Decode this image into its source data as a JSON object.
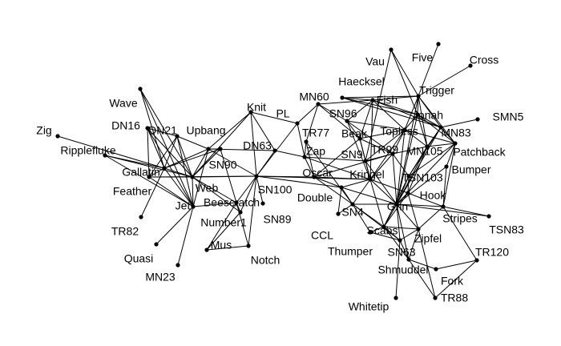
{
  "graph": {
    "nodes": [
      {
        "id": "Zig",
        "label": "Zig"
      },
      {
        "id": "Ripplefluke",
        "label": "Ripplefluke"
      },
      {
        "id": "Wave",
        "label": "Wave"
      },
      {
        "id": "DN16",
        "label": "DN16"
      },
      {
        "id": "DN21",
        "label": "DN21"
      },
      {
        "id": "Gallatin",
        "label": "Gallatin"
      },
      {
        "id": "Feather",
        "label": "Feather"
      },
      {
        "id": "TR82",
        "label": "TR82"
      },
      {
        "id": "Quasi",
        "label": "Quasi"
      },
      {
        "id": "MN23",
        "label": "MN23"
      },
      {
        "id": "Jet",
        "label": "Jet"
      },
      {
        "id": "Web",
        "label": "Web"
      },
      {
        "id": "Upbang",
        "label": "Upbang"
      },
      {
        "id": "SN90",
        "label": "SN90"
      },
      {
        "id": "Beescratch",
        "label": "Beescratch"
      },
      {
        "id": "Number1",
        "label": "Number1"
      },
      {
        "id": "Mus",
        "label": "Mus"
      },
      {
        "id": "Notch",
        "label": "Notch"
      },
      {
        "id": "Knit",
        "label": "Knit"
      },
      {
        "id": "DN63",
        "label": "DN63"
      },
      {
        "id": "SN100",
        "label": "SN100"
      },
      {
        "id": "SN89",
        "label": "SN89"
      },
      {
        "id": "PL",
        "label": "PL"
      },
      {
        "id": "MN60",
        "label": "MN60"
      },
      {
        "id": "TR77",
        "label": "TR77"
      },
      {
        "id": "Zap",
        "label": "Zap"
      },
      {
        "id": "Oscar",
        "label": "Oscar"
      },
      {
        "id": "Double",
        "label": "Double"
      },
      {
        "id": "CCL",
        "label": "CCL"
      },
      {
        "id": "SN4",
        "label": "SN4"
      },
      {
        "id": "Thumper",
        "label": "Thumper"
      },
      {
        "id": "SN96",
        "label": "SN96"
      },
      {
        "id": "Beak",
        "label": "Beak"
      },
      {
        "id": "SN9",
        "label": "SN9"
      },
      {
        "id": "Kringel",
        "label": "Kringel"
      },
      {
        "id": "TR99",
        "label": "TR99"
      },
      {
        "id": "Topless",
        "label": "Topless"
      },
      {
        "id": "Haecksel",
        "label": "Haecksel"
      },
      {
        "id": "Fish",
        "label": "Fish"
      },
      {
        "id": "Vau",
        "label": "Vau"
      },
      {
        "id": "Five",
        "label": "Five"
      },
      {
        "id": "Cross",
        "label": "Cross"
      },
      {
        "id": "Trigger",
        "label": "Trigger"
      },
      {
        "id": "Jonah",
        "label": "Jonah"
      },
      {
        "id": "MN83",
        "label": "MN83"
      },
      {
        "id": "SMN5",
        "label": "SMN5"
      },
      {
        "id": "MN105",
        "label": "MN105"
      },
      {
        "id": "Patchback",
        "label": "Patchback"
      },
      {
        "id": "Bumper",
        "label": "Bumper"
      },
      {
        "id": "TSN103",
        "label": "TSN103"
      },
      {
        "id": "Hook",
        "label": "Hook"
      },
      {
        "id": "Grin",
        "label": "Grin"
      },
      {
        "id": "Stripes",
        "label": "Stripes"
      },
      {
        "id": "TSN83",
        "label": "TSN83"
      },
      {
        "id": "Scabs",
        "label": "Scabs"
      },
      {
        "id": "Zipfel",
        "label": "Zipfel"
      },
      {
        "id": "SN63",
        "label": "SN63"
      },
      {
        "id": "TR120",
        "label": "TR120"
      },
      {
        "id": "Shmuddel",
        "label": "Shmuddel"
      },
      {
        "id": "Fork",
        "label": "Fork"
      },
      {
        "id": "TR88",
        "label": "TR88"
      },
      {
        "id": "Whitetip",
        "label": "Whitetip"
      }
    ],
    "edges": [
      [
        "Zig",
        "Gallatin"
      ],
      [
        "Ripplefluke",
        "Gallatin"
      ],
      [
        "Ripplefluke",
        "Web"
      ],
      [
        "Ripplefluke",
        "Jet"
      ],
      [
        "Wave",
        "Gallatin"
      ],
      [
        "Wave",
        "Web"
      ],
      [
        "Wave",
        "Jet"
      ],
      [
        "DN16",
        "Gallatin"
      ],
      [
        "DN16",
        "Web"
      ],
      [
        "DN16",
        "Feather"
      ],
      [
        "DN16",
        "Jet"
      ],
      [
        "DN16",
        "DN21"
      ],
      [
        "DN21",
        "Gallatin"
      ],
      [
        "DN21",
        "Web"
      ],
      [
        "DN21",
        "Feather"
      ],
      [
        "DN21",
        "Upbang"
      ],
      [
        "DN21",
        "Jet"
      ],
      [
        "Gallatin",
        "Web"
      ],
      [
        "Gallatin",
        "Jet"
      ],
      [
        "Gallatin",
        "Feather"
      ],
      [
        "Gallatin",
        "Upbang"
      ],
      [
        "Gallatin",
        "SN90"
      ],
      [
        "Gallatin",
        "TR82"
      ],
      [
        "Feather",
        "Web"
      ],
      [
        "Feather",
        "Jet"
      ],
      [
        "Feather",
        "SN100"
      ],
      [
        "Jet",
        "Web"
      ],
      [
        "Jet",
        "Quasi"
      ],
      [
        "Jet",
        "MN23"
      ],
      [
        "Jet",
        "Upbang"
      ],
      [
        "Jet",
        "Beescratch"
      ],
      [
        "Web",
        "SN90"
      ],
      [
        "Web",
        "Upbang"
      ],
      [
        "Web",
        "Beescratch"
      ],
      [
        "Web",
        "Number1"
      ],
      [
        "Web",
        "SN100"
      ],
      [
        "Web",
        "Knit"
      ],
      [
        "Upbang",
        "SN90"
      ],
      [
        "Upbang",
        "SN100"
      ],
      [
        "Upbang",
        "Knit"
      ],
      [
        "Upbang",
        "DN63"
      ],
      [
        "SN90",
        "Web"
      ],
      [
        "SN90",
        "Beescratch"
      ],
      [
        "Beescratch",
        "Number1"
      ],
      [
        "Beescratch",
        "SN100"
      ],
      [
        "Beescratch",
        "Notch"
      ],
      [
        "Beescratch",
        "Mus"
      ],
      [
        "Number1",
        "SN100"
      ],
      [
        "Number1",
        "Mus"
      ],
      [
        "Mus",
        "Notch"
      ],
      [
        "Notch",
        "SN100"
      ],
      [
        "Knit",
        "DN63"
      ],
      [
        "Knit",
        "SN100"
      ],
      [
        "Knit",
        "PL"
      ],
      [
        "DN63",
        "SN100"
      ],
      [
        "DN63",
        "Zap"
      ],
      [
        "SN100",
        "SN89"
      ],
      [
        "SN100",
        "Oscar"
      ],
      [
        "SN100",
        "Double"
      ],
      [
        "SN100",
        "PL"
      ],
      [
        "SN100",
        "Kringel"
      ],
      [
        "PL",
        "MN60"
      ],
      [
        "PL",
        "Zap"
      ],
      [
        "MN60",
        "SN96"
      ],
      [
        "MN60",
        "TR77"
      ],
      [
        "MN60",
        "Fish"
      ],
      [
        "MN60",
        "Beak"
      ],
      [
        "TR77",
        "Zap"
      ],
      [
        "TR77",
        "SN4"
      ],
      [
        "TR77",
        "Oscar"
      ],
      [
        "Zap",
        "Oscar"
      ],
      [
        "Zap",
        "SN9"
      ],
      [
        "Zap",
        "Kringel"
      ],
      [
        "Oscar",
        "Double"
      ],
      [
        "Oscar",
        "SN4"
      ],
      [
        "Oscar",
        "Kringel"
      ],
      [
        "Oscar",
        "Beak"
      ],
      [
        "Oscar",
        "TR99"
      ],
      [
        "Double",
        "SN4"
      ],
      [
        "Double",
        "Kringel"
      ],
      [
        "Double",
        "Grin"
      ],
      [
        "Double",
        "CCL"
      ],
      [
        "CCL",
        "SN4"
      ],
      [
        "SN4",
        "Thumper"
      ],
      [
        "SN4",
        "Kringel"
      ],
      [
        "SN4",
        "Grin"
      ],
      [
        "SN4",
        "Scabs"
      ],
      [
        "SN4",
        "SN63"
      ],
      [
        "SN96",
        "Fish"
      ],
      [
        "SN96",
        "Beak"
      ],
      [
        "SN96",
        "Kringel"
      ],
      [
        "SN96",
        "TR99"
      ],
      [
        "SN96",
        "Topless"
      ],
      [
        "Beak",
        "SN9"
      ],
      [
        "Beak",
        "Kringel"
      ],
      [
        "Beak",
        "TR99"
      ],
      [
        "Beak",
        "Topless"
      ],
      [
        "Beak",
        "Fish"
      ],
      [
        "SN9",
        "Kringel"
      ],
      [
        "SN9",
        "TR99"
      ],
      [
        "SN9",
        "Grin"
      ],
      [
        "SN9",
        "Topless"
      ],
      [
        "Kringel",
        "TR99"
      ],
      [
        "Kringel",
        "Grin"
      ],
      [
        "Kringel",
        "Hook"
      ],
      [
        "Kringel",
        "Scabs"
      ],
      [
        "Kringel",
        "Topless"
      ],
      [
        "TR99",
        "Topless"
      ],
      [
        "TR99",
        "Grin"
      ],
      [
        "TR99",
        "MN105"
      ],
      [
        "TR99",
        "TSN103"
      ],
      [
        "Topless",
        "Jonah"
      ],
      [
        "Topless",
        "Trigger"
      ],
      [
        "Topless",
        "MN105"
      ],
      [
        "Topless",
        "Grin"
      ],
      [
        "Topless",
        "Fish"
      ],
      [
        "Topless",
        "Patchback"
      ],
      [
        "Haecksel",
        "Fish"
      ],
      [
        "Haecksel",
        "Jonah"
      ],
      [
        "Haecksel",
        "Trigger"
      ],
      [
        "Haecksel",
        "MN83"
      ],
      [
        "Fish",
        "Trigger"
      ],
      [
        "Fish",
        "Jonah"
      ],
      [
        "Fish",
        "MN83"
      ],
      [
        "Fish",
        "Kringel"
      ],
      [
        "Vau",
        "Jonah"
      ],
      [
        "Vau",
        "SN9"
      ],
      [
        "Vau",
        "Trigger"
      ],
      [
        "Five",
        "Trigger"
      ],
      [
        "Cross",
        "Trigger"
      ],
      [
        "Trigger",
        "Jonah"
      ],
      [
        "Trigger",
        "MN83"
      ],
      [
        "Trigger",
        "MN105"
      ],
      [
        "Trigger",
        "Patchback"
      ],
      [
        "Trigger",
        "Grin"
      ],
      [
        "Jonah",
        "MN83"
      ],
      [
        "Jonah",
        "MN105"
      ],
      [
        "Jonah",
        "Patchback"
      ],
      [
        "Jonah",
        "Grin"
      ],
      [
        "MN83",
        "SMN5"
      ],
      [
        "MN83",
        "MN105"
      ],
      [
        "MN83",
        "Patchback"
      ],
      [
        "MN83",
        "Grin"
      ],
      [
        "MN83",
        "TSN103"
      ],
      [
        "MN105",
        "Patchback"
      ],
      [
        "MN105",
        "Grin"
      ],
      [
        "MN105",
        "TSN103"
      ],
      [
        "MN105",
        "Hook"
      ],
      [
        "Patchback",
        "Bumper"
      ],
      [
        "Patchback",
        "Grin"
      ],
      [
        "Patchback",
        "TSN103"
      ],
      [
        "Patchback",
        "Stripes"
      ],
      [
        "Bumper",
        "Stripes"
      ],
      [
        "Bumper",
        "Grin"
      ],
      [
        "TSN103",
        "Grin"
      ],
      [
        "TSN103",
        "Hook"
      ],
      [
        "TSN103",
        "Scabs"
      ],
      [
        "Hook",
        "Grin"
      ],
      [
        "Hook",
        "Stripes"
      ],
      [
        "Hook",
        "Zipfel"
      ],
      [
        "Hook",
        "Scabs"
      ],
      [
        "Grin",
        "Stripes"
      ],
      [
        "Grin",
        "Scabs"
      ],
      [
        "Grin",
        "SN63"
      ],
      [
        "Grin",
        "Zipfel"
      ],
      [
        "Grin",
        "Shmuddel"
      ],
      [
        "Grin",
        "TSN83"
      ],
      [
        "Stripes",
        "TSN83"
      ],
      [
        "Stripes",
        "Zipfel"
      ],
      [
        "Stripes",
        "TR120"
      ],
      [
        "Scabs",
        "SN63"
      ],
      [
        "Scabs",
        "Thumper"
      ],
      [
        "Scabs",
        "Zipfel"
      ],
      [
        "Scabs",
        "Shmuddel"
      ],
      [
        "SN63",
        "Whitetip"
      ],
      [
        "SN63",
        "Shmuddel"
      ],
      [
        "SN63",
        "Zipfel"
      ],
      [
        "SN63",
        "Thumper"
      ],
      [
        "Zipfel",
        "TR88"
      ],
      [
        "Zipfel",
        "Shmuddel"
      ],
      [
        "Shmuddel",
        "TR88"
      ],
      [
        "Shmuddel",
        "Fork"
      ],
      [
        "TR120",
        "Fork"
      ],
      [
        "TR120",
        "TR88"
      ]
    ]
  }
}
